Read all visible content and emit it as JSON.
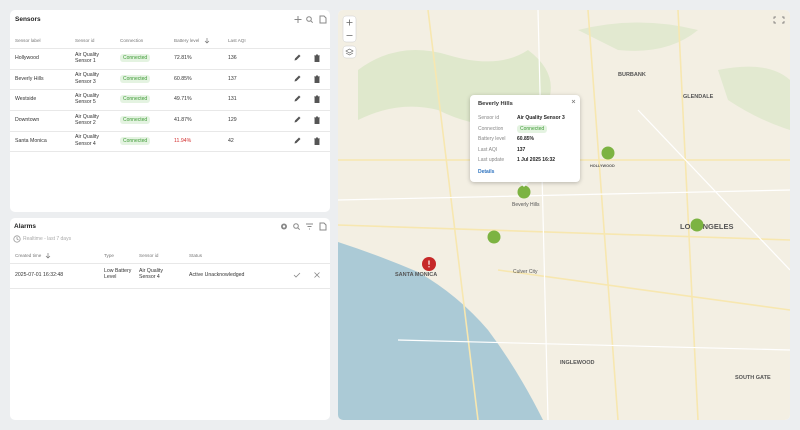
{
  "sensors": {
    "title": "Sensors",
    "columns": [
      "Sensor label",
      "Sensor id",
      "Connection",
      "Battery level",
      "Last AQI"
    ],
    "rows": [
      {
        "label": "Hollywood",
        "sensor_id": "Air Quality Sensor 1",
        "connection": "Connected",
        "battery": "72.81%",
        "battery_color": "#333333",
        "aqi": "136"
      },
      {
        "label": "Beverly Hills",
        "sensor_id": "Air Quality Sensor 3",
        "connection": "Connected",
        "battery": "60.85%",
        "battery_color": "#333333",
        "aqi": "137"
      },
      {
        "label": "Westside",
        "sensor_id": "Air Quality Sensor 5",
        "connection": "Connected",
        "battery": "49.71%",
        "battery_color": "#333333",
        "aqi": "131"
      },
      {
        "label": "Downtown",
        "sensor_id": "Air Quality Sensor 2",
        "connection": "Connected",
        "battery": "41.87%",
        "battery_color": "#333333",
        "aqi": "129"
      },
      {
        "label": "Santa Monica",
        "sensor_id": "Air Quality Sensor 4",
        "connection": "Connected",
        "battery": "11.94%",
        "battery_color": "#d32f2f",
        "aqi": "42"
      }
    ]
  },
  "alarms": {
    "title": "Alarms",
    "period": "Realtime - last 7 days",
    "columns": [
      "Created time",
      "Type",
      "Sensor id",
      "Status"
    ],
    "rows": [
      [
        "2025-07-01 16:32:48",
        "Low Battery Level",
        "Air Quality Sensor 4",
        "Active Unacknowledged"
      ]
    ]
  },
  "map": {
    "popup": {
      "title": "Beverly Hills",
      "fields": [
        [
          "Sensor id",
          "Air Quality Sensor 3"
        ],
        [
          "Connection",
          "Connected"
        ],
        [
          "Battery level",
          "60.85%"
        ],
        [
          "Last AQI",
          "137"
        ],
        [
          "Last update",
          "1 Jul 2025 16:32"
        ]
      ],
      "link": "Details"
    },
    "labels": [
      "BURBANK",
      "GLENDALE",
      "HOLLYWOOD",
      "Beverly Hills",
      "LOS ANGELES",
      "SANTA MONICA",
      "Culver City",
      "INGLEWOOD",
      "SOUTH GATE"
    ]
  }
}
